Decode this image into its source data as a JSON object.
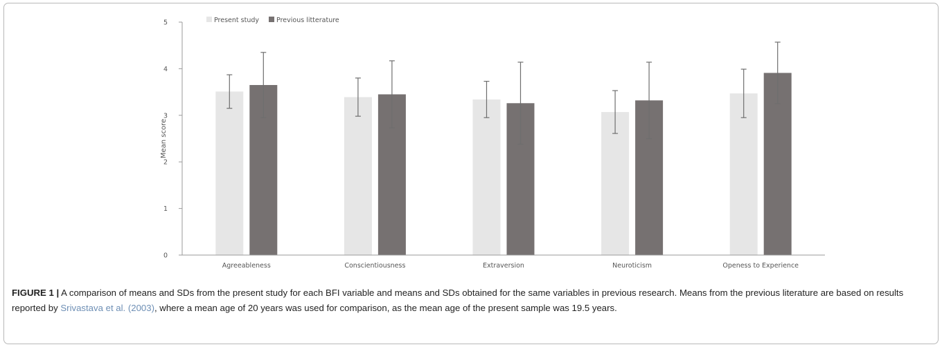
{
  "chart_data": {
    "type": "bar",
    "categories": [
      "Agreeableness",
      "Conscientiousness",
      "Extraversion",
      "Neuroticism",
      "Openess to Experience"
    ],
    "series": [
      {
        "name": "Present study",
        "color": "#e6e6e6",
        "values": [
          3.51,
          3.39,
          3.34,
          3.07,
          3.47
        ],
        "sd": [
          0.36,
          0.41,
          0.39,
          0.46,
          0.52
        ]
      },
      {
        "name": "Previous litterature",
        "color": "#767171",
        "values": [
          3.65,
          3.45,
          3.26,
          3.32,
          3.91
        ],
        "sd": [
          0.7,
          0.72,
          0.88,
          0.82,
          0.66
        ]
      }
    ],
    "ylabel": "Mean score",
    "xlabel": "",
    "ylim": [
      0,
      5
    ],
    "yticks": [
      0,
      1,
      2,
      3,
      4,
      5
    ],
    "legend": "top-left",
    "grid": false
  },
  "caption": {
    "label": "FIGURE 1 |",
    "text_before_citation": " A comparison of means and SDs from the present study for each BFI variable and means and SDs obtained for the same variables in previous research. Means from the previous literature are based on results reported by ",
    "citation": "Srivastava et al. (2003)",
    "text_after_citation": ", where a mean age of 20 years was used for comparison, as the mean age of the present sample was 19.5 years."
  }
}
